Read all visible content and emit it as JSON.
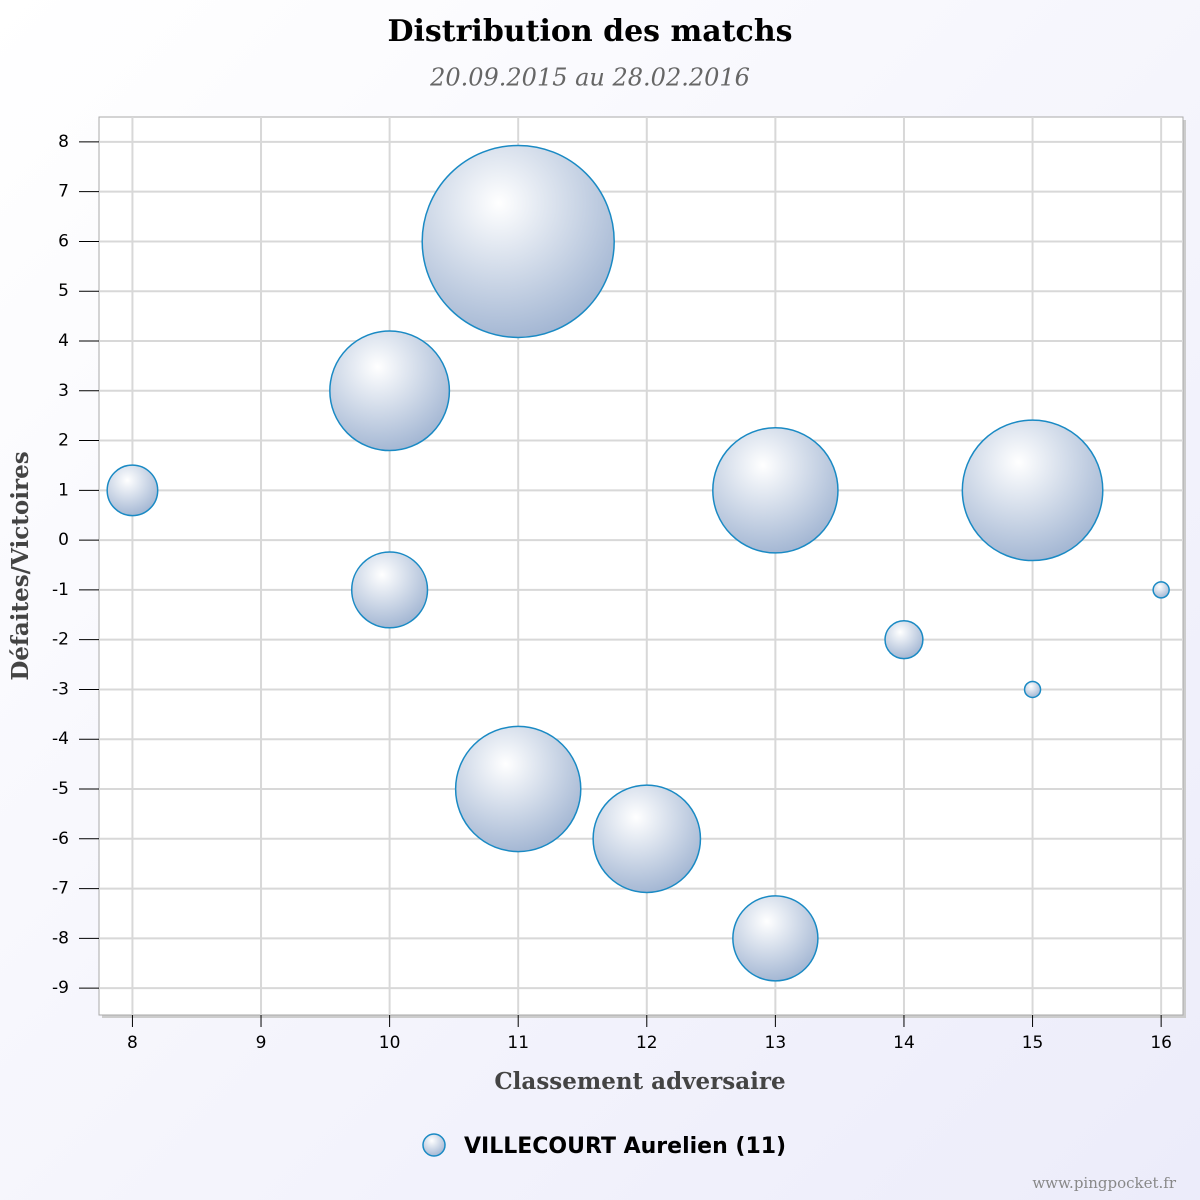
{
  "chart_data": {
    "type": "bubble",
    "title": "Distribution des matchs",
    "subtitle": "20.09.2015 au 28.02.2016",
    "x_label": "Classement adversaire",
    "y_label": "Défaites/Victoires",
    "credit": "www.pingpocket.fr",
    "xlim": [
      7.74,
      16.17
    ],
    "xticks": [
      8,
      9,
      10,
      11,
      12,
      13,
      14,
      15,
      16
    ],
    "ylim": [
      -9.54,
      8.5
    ],
    "yticks": [
      -9,
      -8,
      -7,
      -6,
      -5,
      -4,
      -3,
      -2,
      -1,
      0,
      1,
      2,
      3,
      4,
      5,
      6,
      7,
      8
    ],
    "grid": true,
    "series": [
      {
        "name": "VILLECOURT Aurelien (11)",
        "color": "#1a8ac4",
        "x": [
          8,
          10,
          10,
          11,
          11,
          12,
          13,
          13,
          14,
          15,
          15,
          16
        ],
        "y": [
          1,
          3,
          -1,
          6,
          -5,
          -6,
          1,
          -8,
          -2,
          1,
          -3,
          -1
        ],
        "z": [
          2,
          10,
          4,
          27,
          11,
          8,
          11,
          5,
          1.4,
          14,
          1,
          1
        ]
      }
    ]
  }
}
